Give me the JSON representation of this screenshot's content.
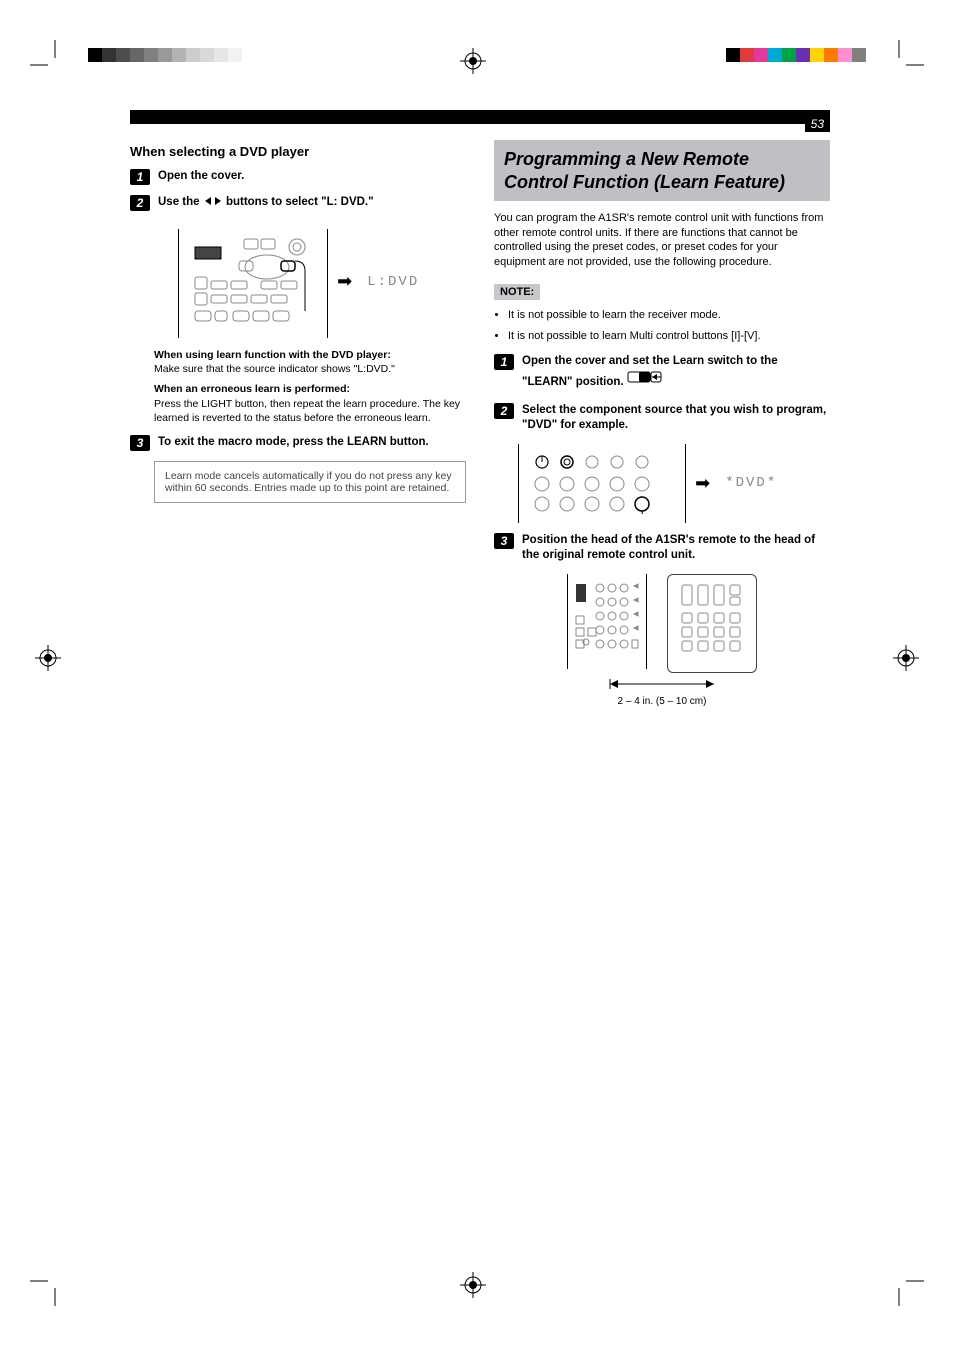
{
  "colorbars": {
    "left": [
      {
        "w": 14,
        "c": "#000000"
      },
      {
        "w": 14,
        "c": "#333333"
      },
      {
        "w": 14,
        "c": "#4d4d4d"
      },
      {
        "w": 14,
        "c": "#666666"
      },
      {
        "w": 14,
        "c": "#808080"
      },
      {
        "w": 14,
        "c": "#999999"
      },
      {
        "w": 14,
        "c": "#b3b3b3"
      },
      {
        "w": 14,
        "c": "#cccccc"
      },
      {
        "w": 14,
        "c": "#d9d9d9"
      },
      {
        "w": 14,
        "c": "#e6e6e6"
      },
      {
        "w": 14,
        "c": "#f2f2f2"
      }
    ],
    "right": [
      {
        "w": 14,
        "c": "#000000"
      },
      {
        "w": 14,
        "c": "#e03a3a"
      },
      {
        "w": 14,
        "c": "#e03aa0"
      },
      {
        "w": 14,
        "c": "#00a9d4"
      },
      {
        "w": 14,
        "c": "#00a34a"
      },
      {
        "w": 14,
        "c": "#6b2fb3"
      },
      {
        "w": 14,
        "c": "#ffd400"
      },
      {
        "w": 14,
        "c": "#ff7a00"
      },
      {
        "w": 14,
        "c": "#ff8fcf"
      },
      {
        "w": 14,
        "c": "#808080"
      }
    ]
  },
  "page_number": "53",
  "left": {
    "heading": "When selecting a DVD player",
    "step1": "Open the cover.",
    "step2_a": "Use the ",
    "step2_b": " buttons to select \"L: DVD.\"",
    "display_left": "L:DVD",
    "block1_title": "When using learn function with the DVD player:",
    "block1_body": "Make sure that the source indicator shows \"L:DVD.\"",
    "block2_title": "When an erroneous learn is performed:",
    "block2_body": "Press the LIGHT button, then repeat the learn procedure. The key learned is reverted to the status before the erroneous learn.",
    "step3": "To exit the macro mode, press the LEARN button.",
    "gray_note": "Learn mode cancels automatically if you do not press any key within 60 seconds. Entries made up to this point are retained."
  },
  "right": {
    "title_l1": "Programming a New Remote",
    "title_l2": "Control Function (Learn Feature)",
    "intro": "You can program the A1SR's remote control unit with functions from other remote control units. If there are functions that cannot be controlled using the preset codes, or preset codes for your equipment are not provided, use the following procedure.",
    "note_label": "NOTE:",
    "notes": [
      "It is not possible to learn the receiver mode.",
      "It is not possible to learn Multi control buttons [I]-[V]."
    ],
    "step1": "Open the cover and set the Learn switch to the \"LEARN\" position.",
    "step2": "Select the component source that you wish to program, \"DVD\" for example.",
    "display_right": "*DVD*",
    "step3": "Position the head of the A1SR's remote to the head of the original remote control unit.",
    "distance": "2 – 4 in. (5 – 10 cm)"
  }
}
